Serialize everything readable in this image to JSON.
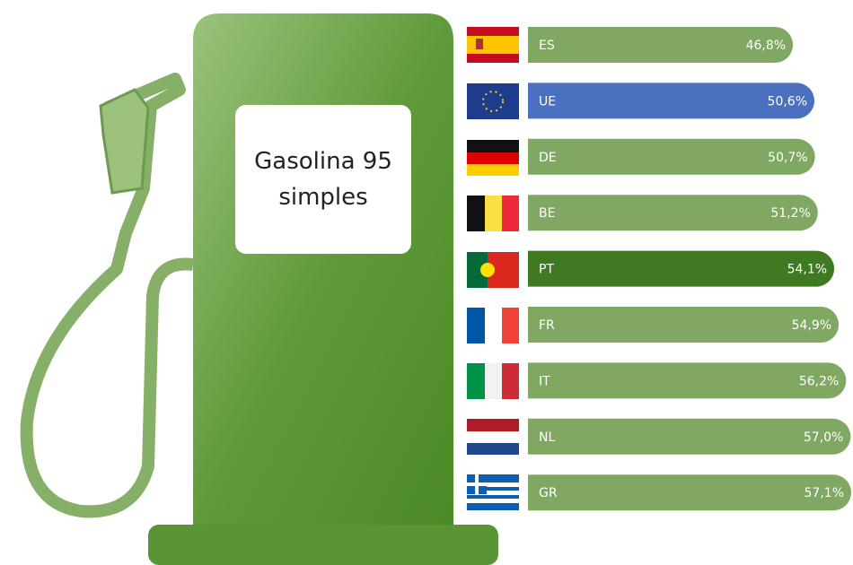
{
  "chart_data": {
    "type": "bar",
    "orientation": "horizontal",
    "title": "Gasolina 95 simples",
    "categories": [
      "ES",
      "UE",
      "DE",
      "BE",
      "PT",
      "FR",
      "IT",
      "NL",
      "GR"
    ],
    "values": [
      46.8,
      50.6,
      50.7,
      51.2,
      54.1,
      54.9,
      56.2,
      57.0,
      57.1
    ],
    "value_labels": [
      "46,8%",
      "50,6%",
      "50,7%",
      "51,2%",
      "54,1%",
      "54,9%",
      "56,2%",
      "57,0%",
      "57,1%"
    ],
    "colors": [
      "#80a863",
      "#4b70bf",
      "#80a863",
      "#80a863",
      "#3f7a22",
      "#80a863",
      "#80a863",
      "#80a863",
      "#80a863"
    ]
  }
}
